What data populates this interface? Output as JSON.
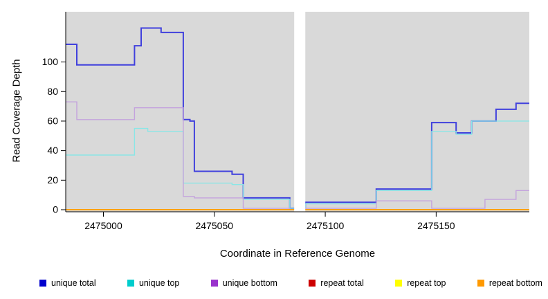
{
  "chart_data": {
    "type": "line",
    "subtype": "step",
    "title": "",
    "xlabel": "Coordinate in Reference Genome",
    "ylabel": "Read Coverage Depth",
    "xlim": [
      2474983,
      2475192
    ],
    "ylim": [
      0,
      134
    ],
    "x_ticks": [
      2475000,
      2475050,
      2475100,
      2475150
    ],
    "y_ticks": [
      0,
      20,
      40,
      60,
      80,
      100
    ],
    "grid": false,
    "plot_bg": "#d9d9d9",
    "axis_color": "#000000",
    "legend_position": "bottom",
    "masked_region": {
      "x_start": 2475086,
      "x_end": 2475091,
      "color": "#ffffff"
    },
    "series": [
      {
        "name": "unique total",
        "line_color": "#4040dd",
        "legend_color": "#0000cd",
        "steps": [
          [
            2474983,
            112
          ],
          [
            2474988,
            98
          ],
          [
            2475014,
            111
          ],
          [
            2475017,
            123
          ],
          [
            2475026,
            120
          ],
          [
            2475036,
            61
          ],
          [
            2475039,
            60
          ],
          [
            2475041,
            26
          ],
          [
            2475058,
            24
          ],
          [
            2475063,
            8
          ],
          [
            2475084,
            1
          ],
          [
            2475091,
            5
          ],
          [
            2475123,
            14
          ],
          [
            2475148,
            59
          ],
          [
            2475159,
            52
          ],
          [
            2475166,
            60
          ],
          [
            2475177,
            68
          ],
          [
            2475186,
            72
          ]
        ]
      },
      {
        "name": "unique top",
        "line_color": "#8ae6e6",
        "legend_color": "#00cdcd",
        "steps": [
          [
            2474983,
            37
          ],
          [
            2475014,
            55
          ],
          [
            2475020,
            53
          ],
          [
            2475036,
            18
          ],
          [
            2475058,
            17
          ],
          [
            2475063,
            7
          ],
          [
            2475084,
            1
          ],
          [
            2475091,
            4
          ],
          [
            2475123,
            13
          ],
          [
            2475148,
            53
          ],
          [
            2475159,
            51
          ],
          [
            2475166,
            60
          ]
        ]
      },
      {
        "name": "unique bottom",
        "line_color": "#c4a3dd",
        "legend_color": "#9933cc",
        "steps": [
          [
            2474983,
            73
          ],
          [
            2474988,
            61
          ],
          [
            2475014,
            69
          ],
          [
            2475036,
            9
          ],
          [
            2475041,
            8
          ],
          [
            2475063,
            1
          ],
          [
            2475084,
            0
          ],
          [
            2475091,
            1
          ],
          [
            2475123,
            6
          ],
          [
            2475148,
            1
          ],
          [
            2475172,
            7
          ],
          [
            2475186,
            13
          ]
        ]
      },
      {
        "name": "repeat total",
        "line_color": "#cd0000",
        "legend_color": "#cd0000",
        "steps": [
          [
            2474983,
            0
          ]
        ]
      },
      {
        "name": "repeat top",
        "line_color": "#ffff00",
        "legend_color": "#ffff00",
        "steps": [
          [
            2474983,
            0
          ]
        ]
      },
      {
        "name": "repeat bottom",
        "line_color": "#ff9900",
        "legend_color": "#ff9900",
        "steps": [
          [
            2474983,
            0
          ]
        ]
      }
    ]
  }
}
